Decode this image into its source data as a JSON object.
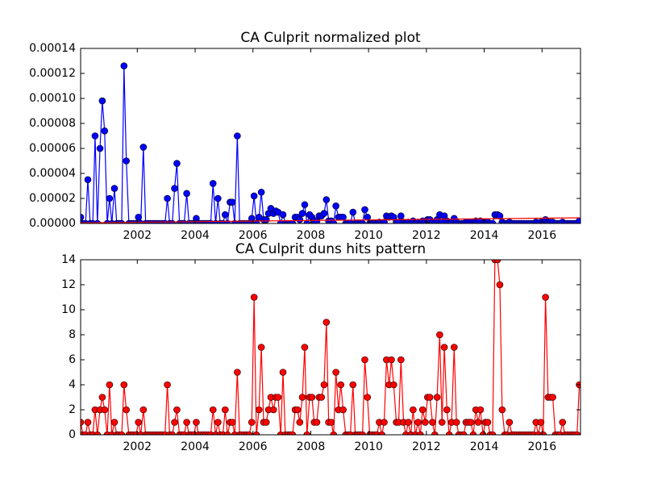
{
  "chart_data": [
    {
      "type": "line",
      "title": "CA Culprit normalized plot",
      "x": [
        2000.04,
        2000.12,
        2000.21,
        2000.29,
        2000.37,
        2000.46,
        2000.54,
        2000.62,
        2000.71,
        2000.79,
        2000.87,
        2000.96,
        2001.04,
        2001.12,
        2001.21,
        2001.29,
        2001.37,
        2001.46,
        2001.54,
        2001.62,
        2001.71,
        2001.79,
        2001.87,
        2001.96,
        2002.04,
        2002.12,
        2002.21,
        2002.29,
        2002.37,
        2002.46,
        2002.54,
        2002.62,
        2002.71,
        2002.79,
        2002.87,
        2002.96,
        2003.04,
        2003.12,
        2003.21,
        2003.29,
        2003.37,
        2003.46,
        2003.54,
        2003.62,
        2003.71,
        2003.79,
        2003.87,
        2003.96,
        2004.04,
        2004.12,
        2004.21,
        2004.29,
        2004.37,
        2004.46,
        2004.54,
        2004.62,
        2004.71,
        2004.79,
        2004.87,
        2004.96,
        2005.04,
        2005.12,
        2005.21,
        2005.29,
        2005.37,
        2005.46,
        2005.54,
        2005.62,
        2005.71,
        2005.79,
        2005.87,
        2005.96,
        2006.04,
        2006.12,
        2006.21,
        2006.29,
        2006.37,
        2006.46,
        2006.54,
        2006.62,
        2006.71,
        2006.79,
        2006.87,
        2006.96,
        2007.04,
        2007.12,
        2007.21,
        2007.29,
        2007.37,
        2007.46,
        2007.54,
        2007.62,
        2007.71,
        2007.79,
        2007.87,
        2007.96,
        2008.04,
        2008.12,
        2008.21,
        2008.29,
        2008.37,
        2008.46,
        2008.54,
        2008.62,
        2008.71,
        2008.79,
        2008.87,
        2008.96,
        2009.04,
        2009.12,
        2009.21,
        2009.29,
        2009.37,
        2009.46,
        2009.54,
        2009.62,
        2009.71,
        2009.79,
        2009.87,
        2009.96,
        2010.04,
        2010.12,
        2010.21,
        2010.29,
        2010.37,
        2010.46,
        2010.54,
        2010.62,
        2010.71,
        2010.79,
        2010.87,
        2010.96,
        2011.04,
        2011.12,
        2011.21,
        2011.29,
        2011.37,
        2011.46,
        2011.54,
        2011.62,
        2011.71,
        2011.79,
        2011.87,
        2011.96,
        2012.04,
        2012.12,
        2012.21,
        2012.29,
        2012.37,
        2012.46,
        2012.54,
        2012.62,
        2012.71,
        2012.79,
        2012.87,
        2012.96,
        2013.04,
        2013.12,
        2013.21,
        2013.29,
        2013.37,
        2013.46,
        2013.54,
        2013.62,
        2013.71,
        2013.79,
        2013.87,
        2013.96,
        2014.04,
        2014.12,
        2014.21,
        2014.29,
        2014.37,
        2014.46,
        2014.54,
        2014.62,
        2014.71,
        2014.79,
        2014.87,
        2014.96,
        2015.04,
        2015.12,
        2015.21,
        2015.29,
        2015.37,
        2015.46,
        2015.54,
        2015.62,
        2015.71,
        2015.79,
        2015.87,
        2015.96,
        2016.04,
        2016.12,
        2016.21,
        2016.29,
        2016.37,
        2016.46,
        2016.54,
        2016.62,
        2016.71,
        2016.79,
        2016.87,
        2016.96,
        2017.04,
        2017.12,
        2017.21,
        2017.29
      ],
      "series": [
        {
          "color": "#0000ff",
          "marker": true,
          "values": [
            5e-06,
            0,
            0,
            3.5e-05,
            0,
            0,
            7e-05,
            0,
            6e-05,
            9.8e-05,
            7.4e-05,
            0,
            2e-05,
            0,
            2.8e-05,
            0,
            0,
            0,
            0.000126,
            5e-05,
            0,
            0,
            0,
            0,
            5e-06,
            0,
            6.1e-05,
            0,
            0,
            0,
            0,
            0,
            0,
            0,
            0,
            0,
            2e-05,
            0,
            0,
            2.8e-05,
            4.8e-05,
            0,
            0,
            0,
            2.4e-05,
            0,
            0,
            0,
            4e-06,
            0,
            0,
            0,
            0,
            0,
            0,
            3.2e-05,
            0,
            2e-05,
            0,
            0,
            7e-06,
            0,
            1.7e-05,
            1.7e-05,
            0,
            7e-05,
            0,
            0,
            0,
            0,
            0,
            4e-06,
            2.2e-05,
            0,
            5e-06,
            2.5e-05,
            3e-06,
            3e-06,
            8e-06,
            1.2e-05,
            8e-06,
            1e-05,
            9e-06,
            0,
            7e-06,
            0,
            0,
            0,
            0,
            5e-06,
            5e-06,
            3e-06,
            8e-06,
            1.5e-05,
            0,
            7e-06,
            5e-06,
            2e-06,
            2e-06,
            6e-06,
            6e-06,
            8e-06,
            1.9e-05,
            2e-06,
            2e-06,
            0,
            1.4e-05,
            5e-06,
            5e-06,
            5e-06,
            0,
            0,
            0,
            9e-06,
            0,
            0,
            0,
            0,
            1.1e-05,
            5e-06,
            0,
            0,
            0,
            0,
            1e-06,
            0,
            1e-06,
            6e-06,
            5e-06,
            6e-06,
            5e-06,
            1e-06,
            1e-06,
            6e-06,
            1e-06,
            0,
            1e-06,
            0,
            2e-06,
            0,
            1e-06,
            0,
            2e-06,
            1e-06,
            3e-06,
            3e-06,
            1e-06,
            0,
            3e-06,
            7e-06,
            1e-06,
            6e-06,
            2e-06,
            0,
            1e-06,
            4e-06,
            1e-06,
            0,
            0,
            0,
            1e-06,
            1e-06,
            1e-06,
            0,
            2e-06,
            1e-06,
            2e-06,
            0,
            1e-06,
            1e-06,
            0,
            0,
            7e-06,
            7e-06,
            6e-06,
            1e-06,
            0,
            0,
            1e-06,
            0,
            0,
            0,
            0,
            0,
            0,
            0,
            0,
            0,
            0,
            1e-06,
            0,
            1e-06,
            0,
            3e-06,
            1e-06,
            1e-06,
            1e-06,
            0,
            0,
            0,
            1e-06,
            0,
            0,
            0,
            0,
            0,
            0,
            2e-06
          ]
        },
        {
          "color": "#ff0000",
          "marker": false,
          "x": [
            2000.04,
            2017.29
          ],
          "values": [
            5e-07,
            4.5e-06
          ]
        }
      ],
      "xlim": [
        2000.04,
        2017.33
      ],
      "xticks": [
        2002,
        2004,
        2006,
        2008,
        2010,
        2012,
        2014,
        2016
      ],
      "ylim": [
        0,
        0.00014
      ],
      "yticks": [
        {
          "value": 0,
          "label": "0.00000"
        },
        {
          "value": 2e-05,
          "label": "0.00002"
        },
        {
          "value": 4e-05,
          "label": "0.00004"
        },
        {
          "value": 6e-05,
          "label": "0.00006"
        },
        {
          "value": 8e-05,
          "label": "0.00008"
        },
        {
          "value": 0.0001,
          "label": "0.00010"
        },
        {
          "value": 0.00012,
          "label": "0.00012"
        },
        {
          "value": 0.00014,
          "label": "0.00014"
        }
      ]
    },
    {
      "type": "line",
      "title": "CA Culprit duns hits pattern",
      "x": [
        2000.04,
        2000.12,
        2000.21,
        2000.29,
        2000.37,
        2000.46,
        2000.54,
        2000.62,
        2000.71,
        2000.79,
        2000.87,
        2000.96,
        2001.04,
        2001.12,
        2001.21,
        2001.29,
        2001.37,
        2001.46,
        2001.54,
        2001.62,
        2001.71,
        2001.79,
        2001.87,
        2001.96,
        2002.04,
        2002.12,
        2002.21,
        2002.29,
        2002.37,
        2002.46,
        2002.54,
        2002.62,
        2002.71,
        2002.79,
        2002.87,
        2002.96,
        2003.04,
        2003.12,
        2003.21,
        2003.29,
        2003.37,
        2003.46,
        2003.54,
        2003.62,
        2003.71,
        2003.79,
        2003.87,
        2003.96,
        2004.04,
        2004.12,
        2004.21,
        2004.29,
        2004.37,
        2004.46,
        2004.54,
        2004.62,
        2004.71,
        2004.79,
        2004.87,
        2004.96,
        2005.04,
        2005.12,
        2005.21,
        2005.29,
        2005.37,
        2005.46,
        2005.54,
        2005.62,
        2005.71,
        2005.79,
        2005.87,
        2005.96,
        2006.04,
        2006.12,
        2006.21,
        2006.29,
        2006.37,
        2006.46,
        2006.54,
        2006.62,
        2006.71,
        2006.79,
        2006.87,
        2006.96,
        2007.04,
        2007.12,
        2007.21,
        2007.29,
        2007.37,
        2007.46,
        2007.54,
        2007.62,
        2007.71,
        2007.79,
        2007.87,
        2007.96,
        2008.04,
        2008.12,
        2008.21,
        2008.29,
        2008.37,
        2008.46,
        2008.54,
        2008.62,
        2008.71,
        2008.79,
        2008.87,
        2008.96,
        2009.04,
        2009.12,
        2009.21,
        2009.29,
        2009.37,
        2009.46,
        2009.54,
        2009.62,
        2009.71,
        2009.79,
        2009.87,
        2009.96,
        2010.04,
        2010.12,
        2010.21,
        2010.29,
        2010.37,
        2010.46,
        2010.54,
        2010.62,
        2010.71,
        2010.79,
        2010.87,
        2010.96,
        2011.04,
        2011.12,
        2011.21,
        2011.29,
        2011.37,
        2011.46,
        2011.54,
        2011.62,
        2011.71,
        2011.79,
        2011.87,
        2011.96,
        2012.04,
        2012.12,
        2012.21,
        2012.29,
        2012.37,
        2012.46,
        2012.54,
        2012.62,
        2012.71,
        2012.79,
        2012.87,
        2012.96,
        2013.04,
        2013.12,
        2013.21,
        2013.29,
        2013.37,
        2013.46,
        2013.54,
        2013.62,
        2013.71,
        2013.79,
        2013.87,
        2013.96,
        2014.04,
        2014.12,
        2014.21,
        2014.29,
        2014.37,
        2014.46,
        2014.54,
        2014.62,
        2014.71,
        2014.79,
        2014.87,
        2014.96,
        2015.04,
        2015.12,
        2015.21,
        2015.29,
        2015.37,
        2015.46,
        2015.54,
        2015.62,
        2015.71,
        2015.79,
        2015.87,
        2015.96,
        2016.04,
        2016.12,
        2016.21,
        2016.29,
        2016.37,
        2016.46,
        2016.54,
        2016.62,
        2016.71,
        2016.79,
        2016.87,
        2016.96,
        2017.04,
        2017.12,
        2017.21,
        2017.29
      ],
      "series": [
        {
          "color": "#ff0000",
          "marker": true,
          "values": [
            1,
            0,
            0,
            1,
            0,
            0,
            2,
            0,
            2,
            3,
            2,
            0,
            4,
            0,
            1,
            0,
            0,
            0,
            4,
            2,
            0,
            0,
            0,
            0,
            1,
            0,
            2,
            0,
            0,
            0,
            0,
            0,
            0,
            0,
            0,
            0,
            4,
            0,
            0,
            1,
            2,
            0,
            0,
            0,
            1,
            0,
            0,
            0,
            1,
            0,
            0,
            0,
            0,
            0,
            0,
            2,
            0,
            1,
            0,
            0,
            2,
            0,
            1,
            1,
            0,
            5,
            0,
            0,
            0,
            0,
            0,
            1,
            11,
            0,
            2,
            7,
            1,
            1,
            2,
            3,
            2,
            3,
            3,
            0,
            5,
            0,
            0,
            0,
            0,
            2,
            2,
            1,
            3,
            7,
            0,
            3,
            3,
            1,
            1,
            3,
            3,
            4,
            9,
            1,
            1,
            0,
            5,
            2,
            4,
            2,
            0,
            0,
            0,
            4,
            0,
            0,
            0,
            0,
            6,
            3,
            0,
            0,
            0,
            0,
            1,
            0,
            1,
            6,
            4,
            6,
            4,
            1,
            1,
            6,
            1,
            0,
            1,
            0,
            2,
            0,
            1,
            0,
            2,
            1,
            3,
            3,
            1,
            0,
            3,
            8,
            1,
            7,
            2,
            0,
            1,
            7,
            1,
            0,
            0,
            0,
            1,
            1,
            1,
            0,
            2,
            1,
            2,
            0,
            1,
            1,
            0,
            0,
            14,
            14,
            12,
            2,
            0,
            0,
            1,
            0,
            0,
            0,
            0,
            0,
            0,
            0,
            0,
            0,
            0,
            1,
            0,
            1,
            0,
            11,
            3,
            3,
            3,
            0,
            0,
            0,
            1,
            0,
            0,
            0,
            0,
            0,
            0,
            4
          ]
        }
      ],
      "xlim": [
        2000.04,
        2017.33
      ],
      "xticks": [
        2002,
        2004,
        2006,
        2008,
        2010,
        2012,
        2014,
        2016
      ],
      "ylim": [
        0,
        14
      ],
      "yticks": [
        0,
        2,
        4,
        6,
        8,
        10,
        12,
        14
      ]
    }
  ]
}
